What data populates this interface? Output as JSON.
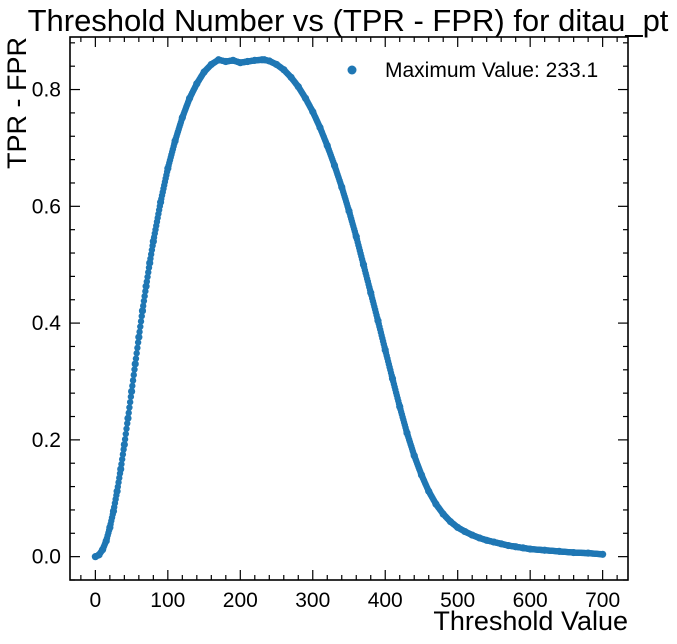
{
  "chart_data": {
    "type": "scatter",
    "title": "Threshold Number vs (TPR - FPR) for ditau_pt",
    "xlabel": "Threshold Value",
    "ylabel": "TPR - FPR",
    "xlim": [
      -35,
      735
    ],
    "ylim": [
      -0.04,
      0.89
    ],
    "x_ticks": [
      0,
      100,
      200,
      300,
      400,
      500,
      600,
      700
    ],
    "x_tick_labels": [
      "0",
      "100",
      "200",
      "300",
      "400",
      "500",
      "600",
      "700"
    ],
    "y_ticks": [
      0.0,
      0.2,
      0.4,
      0.6,
      0.8
    ],
    "y_tick_labels": [
      "0.0",
      "0.2",
      "0.4",
      "0.6",
      "0.8"
    ],
    "grid": false,
    "legend_position": "top-right",
    "series": [
      {
        "name": "Maximum Value: 233.1",
        "color": "#1f77b4",
        "marker": "circle",
        "x": [
          0,
          5,
          10,
          15,
          20,
          25,
          30,
          35,
          40,
          45,
          50,
          55,
          60,
          65,
          70,
          75,
          80,
          90,
          100,
          110,
          120,
          130,
          140,
          150,
          160,
          170,
          180,
          190,
          200,
          210,
          220,
          230,
          233.1,
          240,
          250,
          260,
          270,
          280,
          290,
          300,
          310,
          320,
          330,
          340,
          350,
          360,
          370,
          380,
          390,
          400,
          410,
          420,
          430,
          440,
          450,
          460,
          470,
          480,
          490,
          500,
          510,
          520,
          530,
          540,
          550,
          560,
          570,
          580,
          590,
          600,
          620,
          640,
          660,
          680,
          700
        ],
        "y": [
          0.0,
          0.003,
          0.012,
          0.027,
          0.05,
          0.078,
          0.112,
          0.15,
          0.192,
          0.237,
          0.283,
          0.33,
          0.376,
          0.421,
          0.463,
          0.503,
          0.54,
          0.607,
          0.665,
          0.712,
          0.752,
          0.785,
          0.81,
          0.83,
          0.843,
          0.851,
          0.848,
          0.85,
          0.846,
          0.848,
          0.85,
          0.851,
          0.851,
          0.849,
          0.843,
          0.834,
          0.821,
          0.805,
          0.785,
          0.762,
          0.735,
          0.704,
          0.67,
          0.633,
          0.592,
          0.548,
          0.5,
          0.452,
          0.404,
          0.354,
          0.305,
          0.257,
          0.212,
          0.173,
          0.14,
          0.112,
          0.09,
          0.073,
          0.06,
          0.05,
          0.043,
          0.037,
          0.032,
          0.028,
          0.025,
          0.022,
          0.019,
          0.017,
          0.015,
          0.013,
          0.011,
          0.009,
          0.007,
          0.006,
          0.004
        ]
      }
    ]
  }
}
